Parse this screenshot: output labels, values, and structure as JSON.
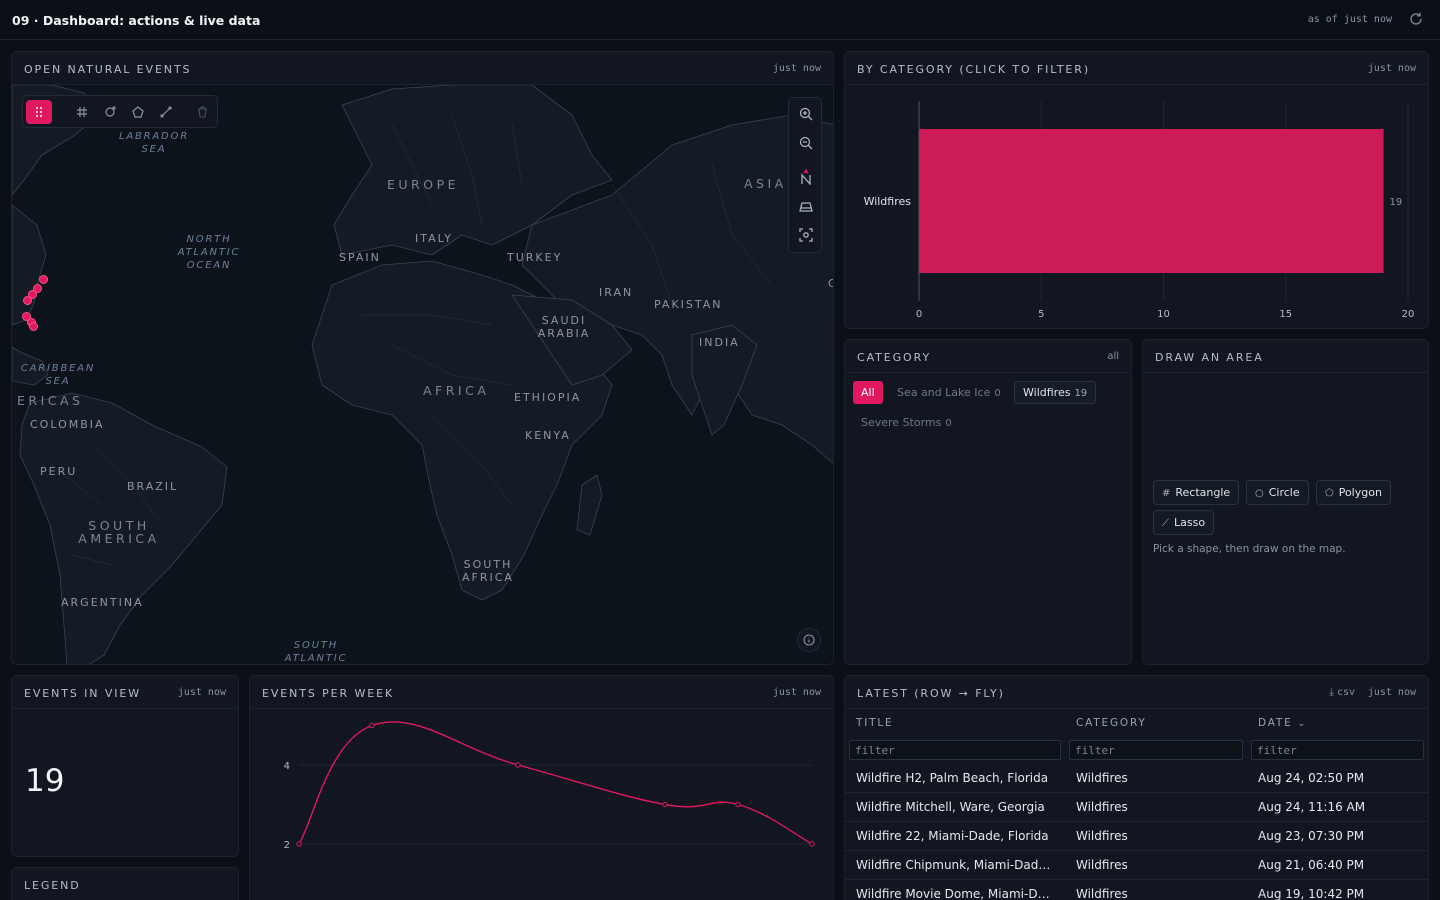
{
  "header": {
    "title": "09 · Dashboard: actions & live data",
    "as_of": "as of just now"
  },
  "map_panel": {
    "title": "OPEN NATURAL EVENTS",
    "updated": "just now",
    "labels": {
      "labrador_sea": "LABRADOR SEA",
      "north_atlantic": "NORTH ATLANTIC OCEAN",
      "caribbean": "CARIBBEAN SEA",
      "south_atlantic": "SOUTH ATLANTIC",
      "europe": "EUROPE",
      "asia": "ASIA",
      "africa": "AFRICA",
      "south_america": "SOUTH AMERICA",
      "americas": "ERICAS",
      "spain": "SPAIN",
      "italy": "ITALY",
      "turkey": "TURKEY",
      "iran": "IRAN",
      "pakistan": "PAKISTAN",
      "india": "INDIA",
      "saudi_arabia": "SAUDI ARABIA",
      "ethiopia": "ETHIOPIA",
      "kenya": "KENYA",
      "south_africa": "SOUTH AFRICA",
      "colombia": "COLOMBIA",
      "peru": "PERU",
      "brazil": "BRAZIL",
      "argentina": "ARGENTINA",
      "edge_c": "C"
    }
  },
  "by_category": {
    "title": "BY CATEGORY (CLICK TO FILTER)",
    "updated": "just now"
  },
  "chart_data": [
    {
      "type": "bar",
      "orientation": "horizontal",
      "categories": [
        "Wildfires"
      ],
      "values": [
        19
      ],
      "xlim": [
        0,
        20
      ],
      "xticks": [
        0,
        5,
        10,
        15,
        20
      ],
      "data_labels": [
        "19"
      ],
      "color": "#cc1b57",
      "grid": true
    },
    {
      "type": "line",
      "x": [
        1,
        2,
        3,
        4,
        5,
        6
      ],
      "y": [
        2,
        5,
        4,
        3,
        3,
        2
      ],
      "yticks": [
        2,
        4
      ],
      "color": "#e0185f",
      "grid": true
    }
  ],
  "category_panel": {
    "title": "CATEGORY",
    "right": "all",
    "chips": [
      {
        "label": "All",
        "count": ""
      },
      {
        "label": "Sea and Lake Ice",
        "count": "0"
      },
      {
        "label": "Wildfires",
        "count": "19"
      },
      {
        "label": "Severe Storms",
        "count": "0"
      }
    ]
  },
  "draw_panel": {
    "title": "DRAW AN AREA",
    "buttons": {
      "rectangle": "Rectangle",
      "circle": "Circle",
      "polygon": "Polygon",
      "lasso": "Lasso"
    },
    "hint": "Pick a shape, then draw on the map."
  },
  "events_in_view": {
    "title": "EVENTS IN VIEW",
    "updated": "just now",
    "count": "19"
  },
  "legend": {
    "title": "LEGEND"
  },
  "events_per_week": {
    "title": "EVENTS PER WEEK",
    "updated": "just now"
  },
  "latest": {
    "title": "LATEST (ROW → FLY)",
    "csv": "csv",
    "updated": "just now",
    "columns": {
      "title": "TITLE",
      "category": "CATEGORY",
      "date": "DATE"
    },
    "filter_placeholder": "filter",
    "rows": [
      {
        "title": "Wildfire H2, Palm Beach, Florida",
        "category": "Wildfires",
        "date": "Aug 24, 02:50 PM"
      },
      {
        "title": "Wildfire Mitchell, Ware, Georgia",
        "category": "Wildfires",
        "date": "Aug 24, 11:16 AM"
      },
      {
        "title": "Wildfire 22, Miami-Dade, Florida",
        "category": "Wildfires",
        "date": "Aug 23, 07:30 PM"
      },
      {
        "title": "Wildfire Chipmunk, Miami-Dade, Florida",
        "category": "Wildfires",
        "date": "Aug 21, 06:40 PM"
      },
      {
        "title": "Wildfire Movie Dome, Miami-Dade, Florida",
        "category": "Wildfires",
        "date": "Aug 19, 10:42 PM"
      }
    ]
  },
  "colors": {
    "accent": "#e0185f",
    "bar": "#cc1b57",
    "background": "#0b0f16",
    "panel": "#111620"
  }
}
